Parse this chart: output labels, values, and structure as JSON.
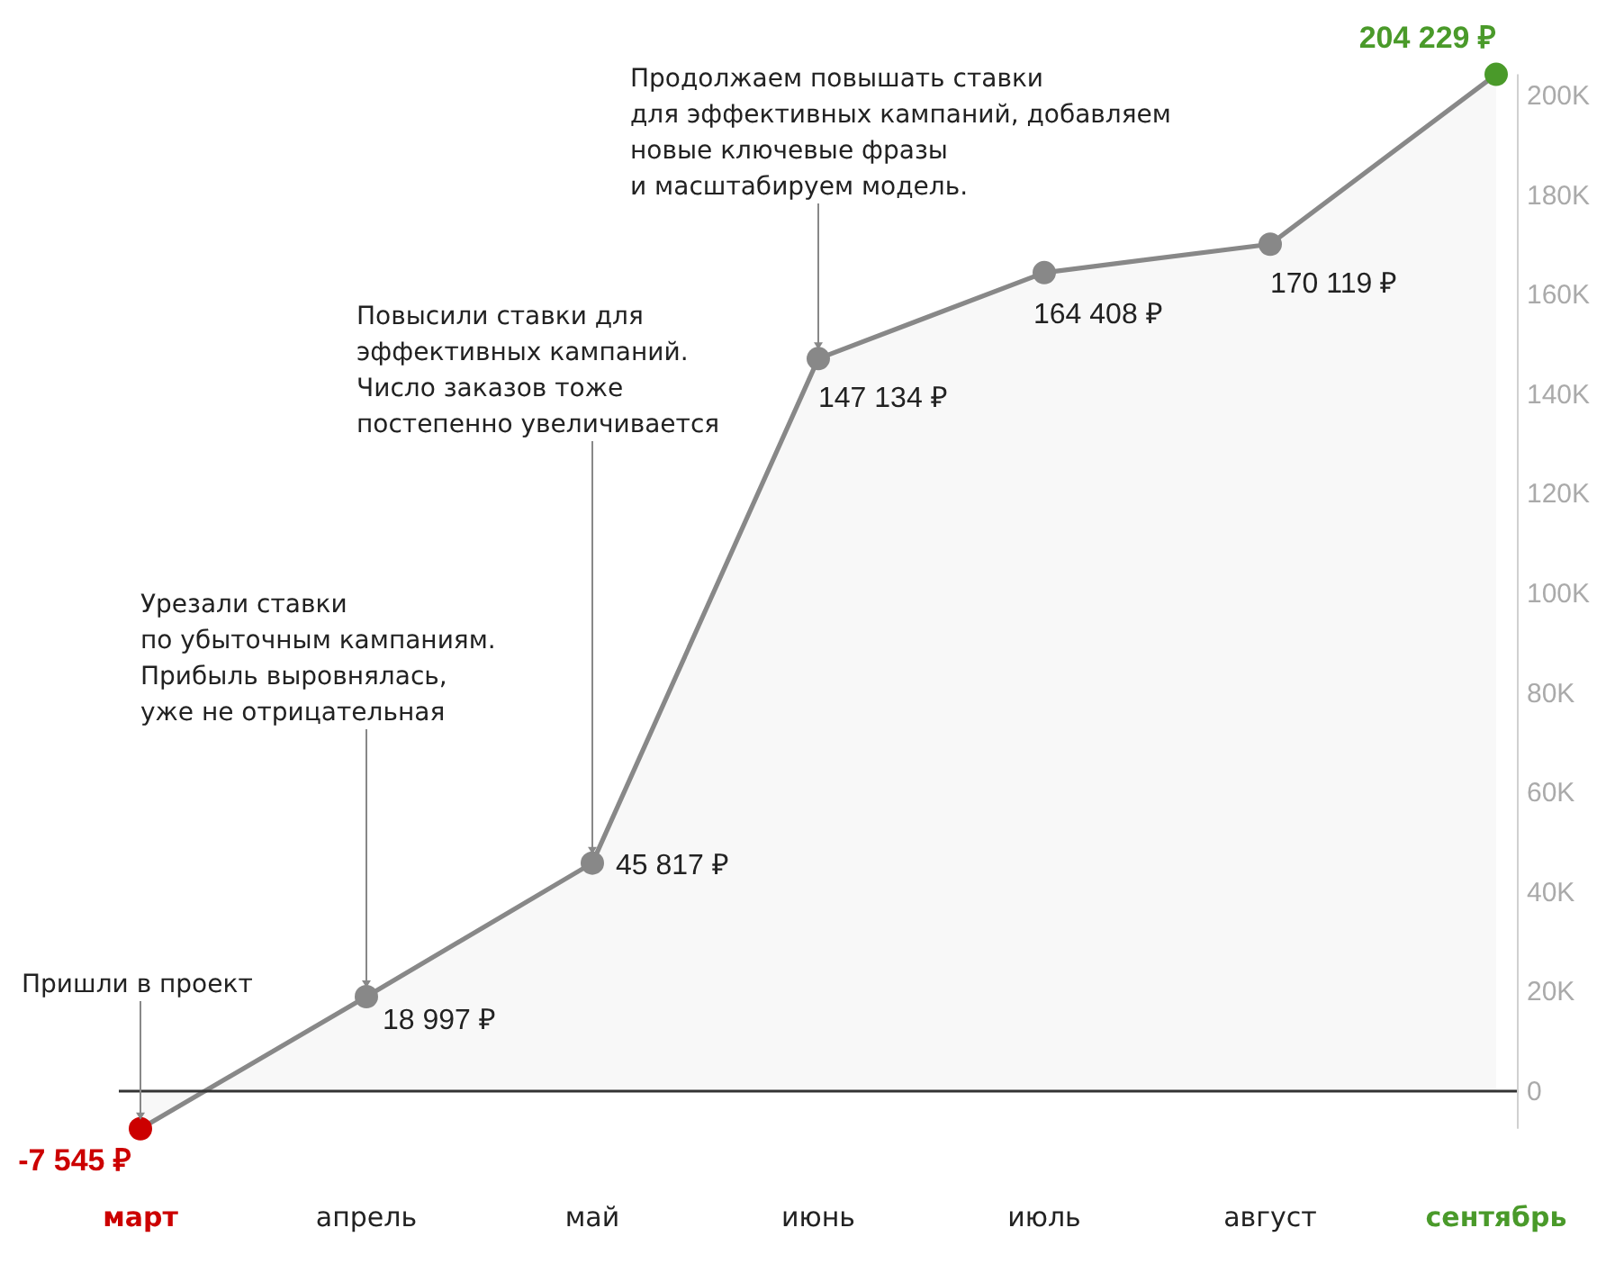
{
  "chart_data": {
    "type": "area",
    "categories": [
      "март",
      "апрель",
      "май",
      "июнь",
      "июль",
      "август",
      "сентябрь"
    ],
    "series": [
      {
        "color": "#888888",
        "colors": [
          "#cc0000",
          "#888888",
          "#888888",
          "#888888",
          "#888888",
          "#888888",
          "#4a9a2a"
        ],
        "values": [
          -7545,
          18997,
          45817,
          147134,
          164408,
          170119,
          204229
        ],
        "value_labels": [
          "-7 545 ₽",
          "18 997 ₽",
          "45 817 ₽",
          "147 134 ₽",
          "164 408 ₽",
          "170 119 ₽",
          "204 229 ₽"
        ]
      }
    ],
    "ylim": [
      -7545,
      204229
    ],
    "yticks": [
      0,
      {
        "value": 20000,
        "label": "20K"
      },
      {
        "value": 40000,
        "label": "40K"
      },
      {
        "value": 60000,
        "label": "60K"
      },
      {
        "value": 80000,
        "label": "80K"
      },
      {
        "value": 100000,
        "label": "100K"
      },
      {
        "value": 120000,
        "label": "120K"
      },
      {
        "value": 140000,
        "label": "140K"
      },
      {
        "value": 160000,
        "label": "160K"
      },
      {
        "value": 180000,
        "label": "180K"
      },
      {
        "value": 200000,
        "label": "200K"
      }
    ],
    "marker": "circle",
    "ref_lines": [
      {
        "axis": "y",
        "value": 0,
        "color": "#333333"
      }
    ],
    "annotations": [
      {
        "text": "Пришли в проект",
        "x": "март",
        "y": -7545
      },
      {
        "text": "Урезали ставки\nпо убыточным кампаниям.\nПрибыль выровнялась,\nуже не отрицательная",
        "x": "апрель",
        "y": 18997
      },
      {
        "text": "Повысили ставки для\nэффективных кампаний.\nЧисло заказов тоже\nпостепенно увеличивается",
        "x": "май",
        "y": 45817
      },
      {
        "text": "Продолжаем повышать ставки\nдля эффективных кампаний, добавляем\nновые ключевые фразы\nи масштабируем модель.",
        "x": "июнь",
        "y": 147134
      }
    ]
  }
}
